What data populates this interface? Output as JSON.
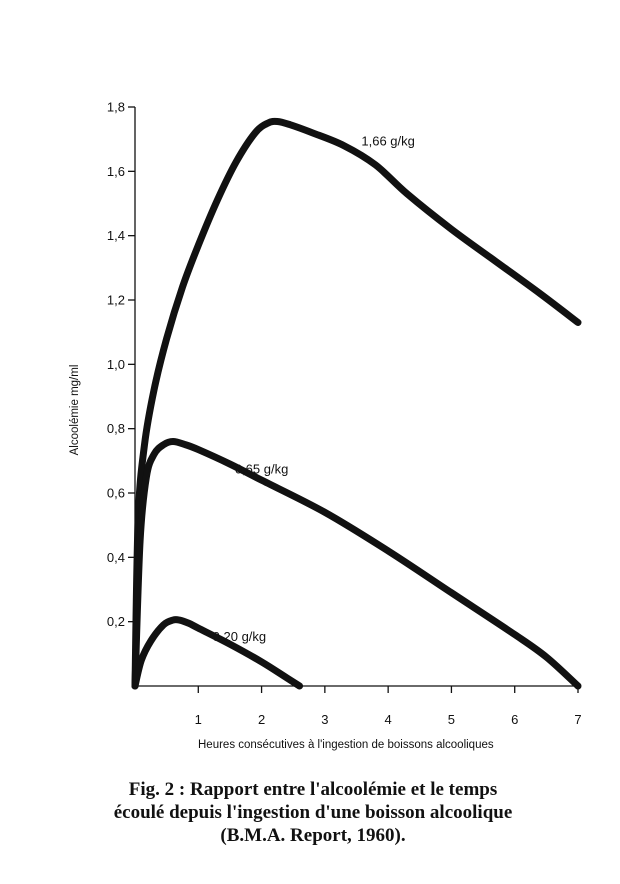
{
  "chart_data": {
    "type": "line",
    "title": "",
    "xlabel": "Heures consécutives à l'ingestion de boissons alcooliques",
    "ylabel": "Alcoolémie mg/ml",
    "xlim": [
      0,
      7
    ],
    "ylim": [
      0,
      1.8
    ],
    "x_ticks": [
      {
        "value": 1,
        "label": "1"
      },
      {
        "value": 2,
        "label": "2"
      },
      {
        "value": 3,
        "label": "3"
      },
      {
        "value": 4,
        "label": "4"
      },
      {
        "value": 5,
        "label": "5"
      },
      {
        "value": 6,
        "label": "6"
      },
      {
        "value": 7,
        "label": "7"
      }
    ],
    "y_ticks": [
      {
        "value": 0.2,
        "label": "0,2"
      },
      {
        "value": 0.4,
        "label": "0,4"
      },
      {
        "value": 0.6,
        "label": "0,6"
      },
      {
        "value": 0.8,
        "label": "0,8"
      },
      {
        "value": 1.0,
        "label": "1,0"
      },
      {
        "value": 1.2,
        "label": "1,2"
      },
      {
        "value": 1.4,
        "label": "1,4"
      },
      {
        "value": 1.6,
        "label": "1,6"
      },
      {
        "value": 1.8,
        "label": "1,8"
      }
    ],
    "grid": false,
    "line_color": "#111111",
    "series": [
      {
        "name": "1,66 g/kg",
        "x": [
          0,
          0.05,
          0.15,
          0.3,
          0.5,
          0.75,
          1.0,
          1.3,
          1.6,
          1.9,
          2.1,
          2.25,
          2.45,
          2.8,
          3.3,
          3.8,
          4.3,
          5.0,
          5.7,
          6.4,
          7.0
        ],
        "y": [
          0,
          0.52,
          0.75,
          0.92,
          1.08,
          1.24,
          1.37,
          1.51,
          1.63,
          1.72,
          1.75,
          1.755,
          1.745,
          1.72,
          1.68,
          1.62,
          1.53,
          1.42,
          1.32,
          1.22,
          1.13
        ]
      },
      {
        "name": "0,65 g/kg",
        "x": [
          0,
          0.08,
          0.18,
          0.3,
          0.45,
          0.6,
          0.8,
          1.0,
          1.5,
          2.0,
          3.0,
          4.0,
          5.0,
          6.0,
          6.5,
          7.0
        ],
        "y": [
          0,
          0.45,
          0.65,
          0.72,
          0.75,
          0.76,
          0.75,
          0.735,
          0.69,
          0.64,
          0.54,
          0.42,
          0.29,
          0.16,
          0.09,
          0.0
        ]
      },
      {
        "name": "0,20 g/kg",
        "x": [
          0,
          0.1,
          0.25,
          0.45,
          0.6,
          0.7,
          0.85,
          1.0,
          1.5,
          2.0,
          2.4,
          2.6
        ],
        "y": [
          0,
          0.08,
          0.14,
          0.19,
          0.205,
          0.205,
          0.195,
          0.18,
          0.13,
          0.075,
          0.025,
          0.0
        ]
      }
    ],
    "series_labels": [
      {
        "text": "1,66 g/kg",
        "x": 4.0,
        "y": 1.68
      },
      {
        "text": "0,65 g/kg",
        "x": 2.0,
        "y": 0.66
      },
      {
        "text": "0,20 g/kg",
        "x": 1.65,
        "y": 0.14
      }
    ]
  },
  "caption": {
    "line1": "Fig. 2 : Rapport entre l'alcoolémie et le temps",
    "line2": "écoulé depuis l'ingestion d'une boisson alcoolique",
    "line3": "(B.M.A. Report, 1960)."
  }
}
